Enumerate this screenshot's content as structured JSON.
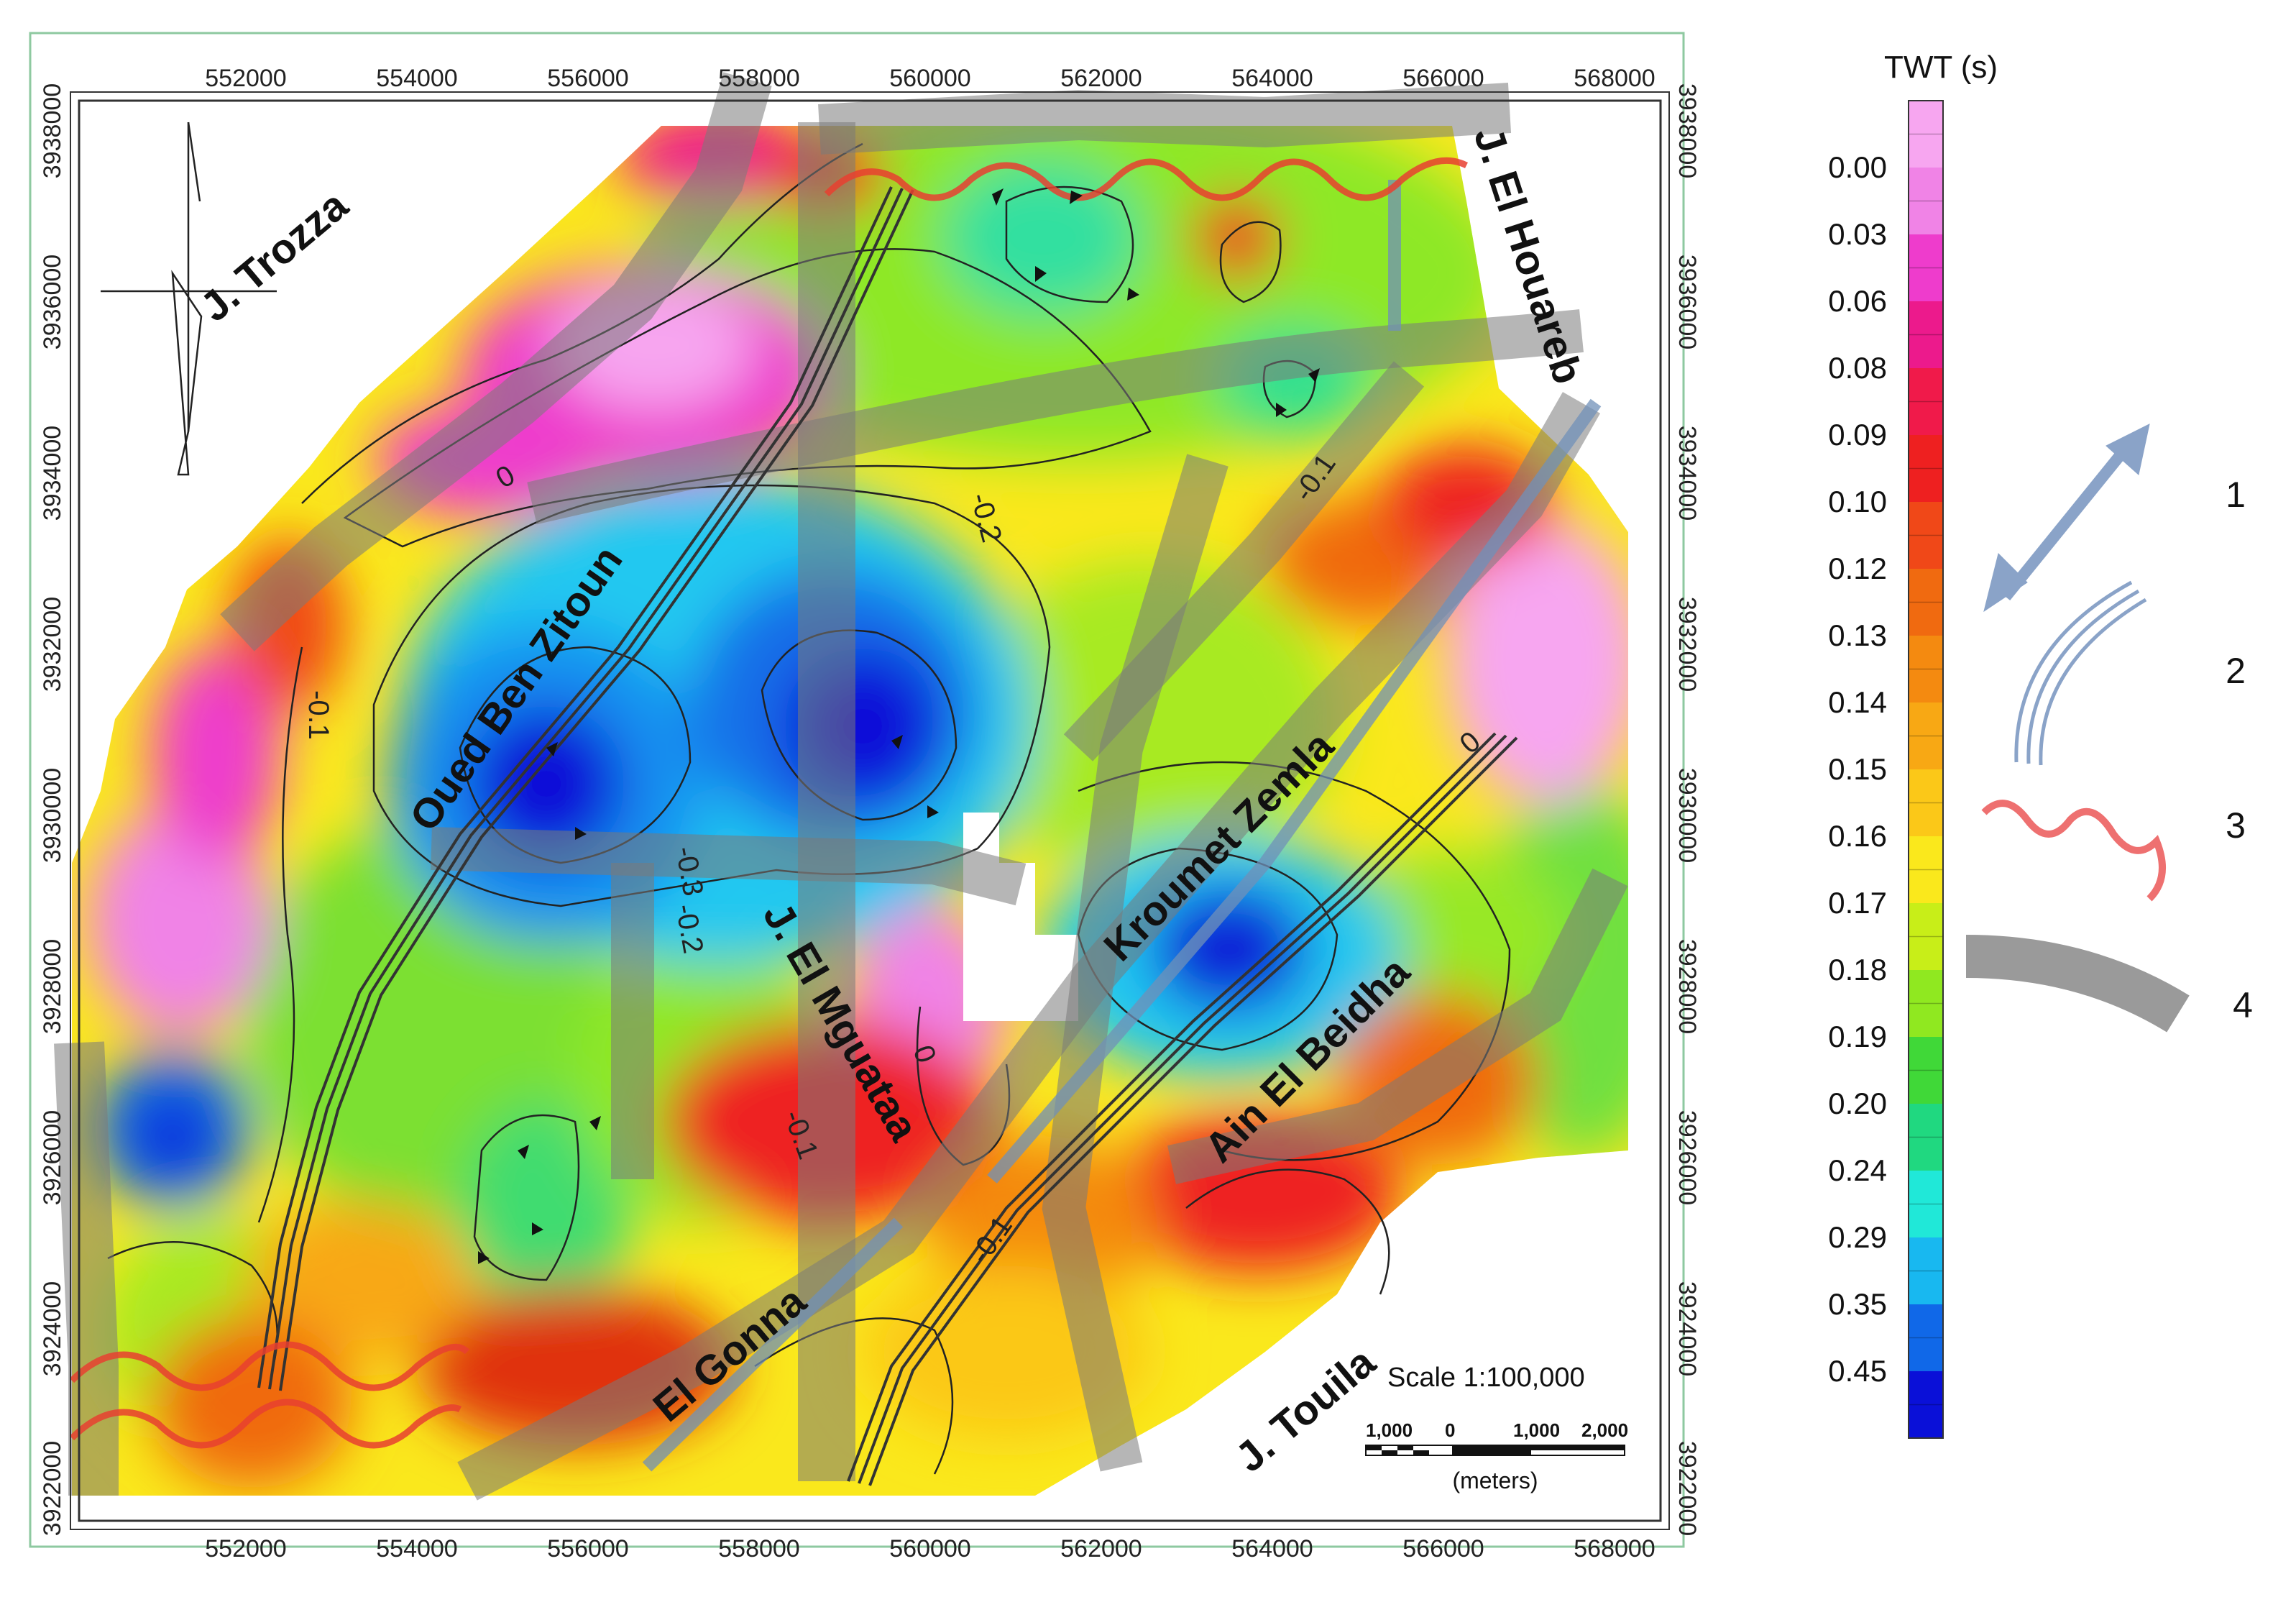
{
  "map": {
    "x_ticks": [
      "552000",
      "554000",
      "556000",
      "558000",
      "560000",
      "562000",
      "564000",
      "566000",
      "568000"
    ],
    "y_ticks": [
      "3938000",
      "3936000",
      "3934000",
      "3932000",
      "3930000",
      "3928000",
      "3926000",
      "3924000",
      "3922000"
    ],
    "place_labels": {
      "trozza": "J. Trozza",
      "houareb": "J. El Houareb",
      "oued": "Oued Ben Zitoun",
      "kroumet": "Kroumet Zemla",
      "mguataa": "J. El Mguataa",
      "beidha": "Ain El Beidha",
      "gonna": "El Gonna",
      "touila": "J. Touila"
    },
    "contour_labels": [
      "0",
      "-0.2",
      "-0.1",
      "-0.1",
      "-0.3",
      "-0.2",
      "-0.1",
      "0",
      "0",
      "-0.1"
    ],
    "scale": {
      "text": "Scale 1:100,000",
      "ticks": [
        "1,000",
        "0",
        "1,000",
        "2,000"
      ],
      "units": "(meters)"
    }
  },
  "colorbar": {
    "title": "TWT (s)",
    "labels": [
      "0.00",
      "0.03",
      "0.06",
      "0.08",
      "0.09",
      "0.10",
      "0.12",
      "0.13",
      "0.14",
      "0.15",
      "0.16",
      "0.17",
      "0.18",
      "0.19",
      "0.20",
      "0.24",
      "0.29",
      "0.35",
      "0.45"
    ],
    "colors": [
      "#f7a6f0",
      "#f083e6",
      "#ee3ccc",
      "#ec1a8c",
      "#f01a4a",
      "#ee2020",
      "#f04818",
      "#f06a10",
      "#f48a10",
      "#f8a814",
      "#fbc818",
      "#fae81c",
      "#c8ee18",
      "#90e820",
      "#40d838",
      "#20d880",
      "#20e8d8",
      "#18b8f0",
      "#1068e8",
      "#0a10d8"
    ]
  },
  "legend": {
    "items": [
      {
        "num": "1",
        "icon": "double-arrow-icon"
      },
      {
        "num": "2",
        "icon": "triple-line-icon"
      },
      {
        "num": "3",
        "icon": "wavy-line-icon"
      },
      {
        "num": "4",
        "icon": "gray-band-icon"
      }
    ]
  }
}
